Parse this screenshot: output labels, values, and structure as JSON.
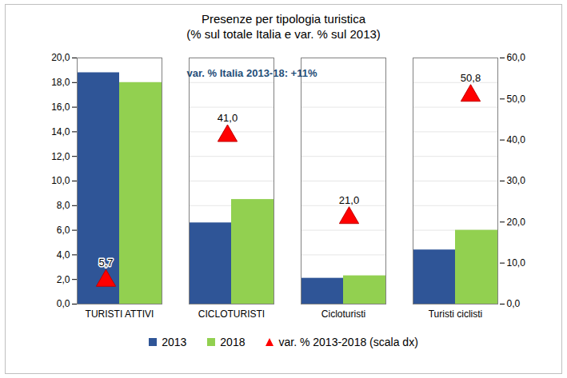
{
  "chart_data": {
    "type": "bar",
    "title": "Presenze per tipologia turistica",
    "subtitle": "(% sul totale Italia e var. % sul 2013)",
    "categories": [
      "TURISTI ATTIVI",
      "CICLOTURISTI",
      "Cicloturisti",
      "Turisti ciclisti"
    ],
    "series": [
      {
        "name": "2013",
        "color": "#2f5597",
        "values": [
          18.8,
          6.6,
          2.1,
          4.4
        ]
      },
      {
        "name": "2018",
        "color": "#92d050",
        "values": [
          18.0,
          8.5,
          2.3,
          6.0
        ]
      },
      {
        "name": "var. % 2013-2018 (scala dx)",
        "type": "scatter",
        "axis": "y2",
        "marker": "triangle",
        "color": "#ff0000",
        "values": [
          5.7,
          41.0,
          21.0,
          50.8
        ],
        "value_labels": [
          "5,7",
          "41,0",
          "21,0",
          "50,8"
        ],
        "data_labels": true
      }
    ],
    "annotations": [
      {
        "text": "var. % Italia 2013-18: +11%"
      }
    ],
    "ylim": [
      0,
      20
    ],
    "yticks": [
      {
        "value": 0,
        "label": "0,0"
      },
      {
        "value": 2,
        "label": "2,0"
      },
      {
        "value": 4,
        "label": "4,0"
      },
      {
        "value": 6,
        "label": "6,0"
      },
      {
        "value": 8,
        "label": "8,0"
      },
      {
        "value": 10,
        "label": "10,0"
      },
      {
        "value": 12,
        "label": "12,0"
      },
      {
        "value": 14,
        "label": "14,0"
      },
      {
        "value": 16,
        "label": "16,0"
      },
      {
        "value": 18,
        "label": "18,0"
      },
      {
        "value": 20,
        "label": "20,0"
      }
    ],
    "y2lim": [
      0,
      60
    ],
    "y2ticks": [
      {
        "value": 0,
        "label": "0,0"
      },
      {
        "value": 10,
        "label": "10,0"
      },
      {
        "value": 20,
        "label": "20,0"
      },
      {
        "value": 30,
        "label": "30,0"
      },
      {
        "value": 40,
        "label": "40,0"
      },
      {
        "value": 50,
        "label": "50,0"
      },
      {
        "value": 60,
        "label": "60,0"
      }
    ],
    "grid": true,
    "legend": "bottom"
  }
}
